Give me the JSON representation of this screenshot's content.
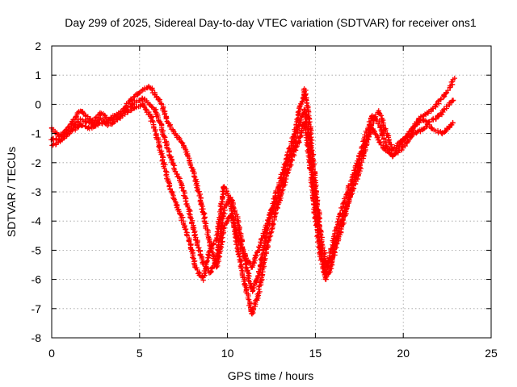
{
  "chart_data": {
    "type": "scatter",
    "title": "Day 299 of 2025, Sidereal Day-to-day VTEC variation (SDTVAR) for receiver ons1",
    "xlabel": "GPS time / hours",
    "ylabel": "SDTVAR / TECUs",
    "xlim": [
      0,
      25
    ],
    "ylim": [
      -8,
      2
    ],
    "xticks": [
      0,
      5,
      10,
      15,
      20,
      25
    ],
    "yticks": [
      -8,
      -7,
      -6,
      -5,
      -4,
      -3,
      -2,
      -1,
      0,
      1,
      2
    ],
    "grid": true,
    "marker": "+",
    "color": "#ff0000",
    "series": [
      {
        "x": [
          0.0,
          0.4,
          0.8,
          1.2,
          1.6,
          2.0,
          2.4,
          2.8,
          3.2,
          3.6,
          4.0,
          4.4,
          4.8,
          5.2,
          5.6,
          5.9,
          6.2,
          6.6,
          7.0,
          7.4,
          7.8,
          8.2,
          8.6,
          9.0,
          9.4,
          9.8,
          10.2,
          10.6,
          11.0,
          11.4,
          11.8,
          12.2,
          12.6,
          13.0,
          13.4,
          13.8,
          14.1,
          14.4,
          14.7,
          15.0,
          15.3,
          15.6,
          15.9,
          16.2,
          16.6,
          17.0,
          17.4,
          17.8,
          18.2,
          18.6,
          19.0,
          19.4,
          19.8,
          20.2,
          20.6,
          21.0,
          21.4,
          21.8,
          22.2,
          22.6,
          22.9
        ],
        "y": [
          -0.8,
          -1.1,
          -0.9,
          -0.6,
          -0.2,
          -0.4,
          -0.6,
          -0.3,
          -0.5,
          -0.4,
          -0.2,
          0.1,
          0.3,
          0.5,
          0.6,
          0.3,
          0.1,
          -0.6,
          -1.0,
          -1.3,
          -1.8,
          -2.6,
          -3.6,
          -4.8,
          -5.6,
          -4.2,
          -3.8,
          -4.6,
          -5.2,
          -5.6,
          -4.9,
          -4.2,
          -3.4,
          -2.6,
          -1.8,
          -1.0,
          -0.2,
          0.5,
          -0.8,
          -2.8,
          -4.4,
          -5.5,
          -5.3,
          -4.6,
          -3.8,
          -3.1,
          -2.5,
          -1.6,
          -0.7,
          -0.2,
          -0.9,
          -1.6,
          -1.3,
          -1.1,
          -0.8,
          -0.4,
          -0.3,
          -0.1,
          0.2,
          0.5,
          0.9
        ]
      },
      {
        "x": [
          0.0,
          0.4,
          0.8,
          1.2,
          1.6,
          2.0,
          2.4,
          2.8,
          3.2,
          3.6,
          4.0,
          4.4,
          4.8,
          5.2,
          5.6,
          5.9,
          6.2,
          6.6,
          7.0,
          7.4,
          7.8,
          8.2,
          8.6,
          9.0,
          9.4,
          9.8,
          10.2,
          10.6,
          11.0,
          11.4,
          11.8,
          12.2,
          12.6,
          13.0,
          13.4,
          13.8,
          14.1,
          14.4,
          14.7,
          15.0,
          15.3,
          15.6,
          15.9,
          16.2,
          16.6,
          17.0,
          17.4,
          17.8,
          18.2,
          18.6,
          19.0,
          19.4,
          19.8,
          20.2,
          20.6,
          21.0,
          21.4,
          21.8,
          22.2,
          22.6,
          22.9
        ],
        "y": [
          -1.2,
          -1.2,
          -1.0,
          -0.8,
          -0.5,
          -0.6,
          -0.7,
          -0.5,
          -0.6,
          -0.5,
          -0.3,
          -0.1,
          0.1,
          0.2,
          0.0,
          -0.2,
          -0.7,
          -1.5,
          -2.2,
          -2.8,
          -3.6,
          -4.6,
          -5.4,
          -5.8,
          -5.3,
          -3.6,
          -3.2,
          -4.0,
          -5.4,
          -6.4,
          -5.8,
          -4.4,
          -3.6,
          -2.9,
          -2.0,
          -1.4,
          -0.6,
          -0.2,
          -1.4,
          -3.4,
          -4.9,
          -5.8,
          -5.0,
          -4.2,
          -3.4,
          -2.7,
          -2.0,
          -1.2,
          -0.4,
          -0.6,
          -1.4,
          -1.8,
          -1.4,
          -1.1,
          -0.8,
          -0.5,
          -0.6,
          -0.5,
          -0.3,
          0.0,
          0.2
        ]
      },
      {
        "x": [
          0.0,
          0.4,
          0.8,
          1.2,
          1.6,
          2.0,
          2.4,
          2.8,
          3.2,
          3.6,
          4.0,
          4.4,
          4.8,
          5.2,
          5.6,
          5.9,
          6.2,
          6.6,
          7.0,
          7.4,
          7.8,
          8.2,
          8.6,
          9.0,
          9.4,
          9.8,
          10.2,
          10.6,
          11.0,
          11.4,
          11.8,
          12.2,
          12.6,
          13.0,
          13.4,
          13.8,
          14.1,
          14.4,
          14.7,
          15.0,
          15.3,
          15.6,
          15.9,
          16.2,
          16.6,
          17.0,
          17.4,
          17.8,
          18.2,
          18.6,
          19.0,
          19.4,
          19.8,
          20.2,
          20.6,
          21.0,
          21.4,
          21.8,
          22.2,
          22.6,
          22.9
        ],
        "y": [
          -1.4,
          -1.3,
          -1.1,
          -0.9,
          -0.7,
          -0.8,
          -0.8,
          -0.6,
          -0.7,
          -0.6,
          -0.4,
          -0.2,
          -0.1,
          0.0,
          -0.4,
          -0.9,
          -1.6,
          -2.6,
          -3.3,
          -3.9,
          -4.6,
          -5.6,
          -6.0,
          -5.0,
          -4.6,
          -2.8,
          -3.4,
          -5.0,
          -6.2,
          -7.2,
          -6.4,
          -5.0,
          -4.0,
          -3.2,
          -2.4,
          -1.6,
          -1.2,
          -0.6,
          -2.0,
          -3.9,
          -5.2,
          -6.0,
          -5.6,
          -4.8,
          -4.0,
          -3.0,
          -2.2,
          -1.4,
          -0.8,
          -1.2,
          -1.6,
          -1.7,
          -1.6,
          -1.3,
          -1.0,
          -0.9,
          -0.7,
          -0.9,
          -1.0,
          -0.8,
          -0.6
        ]
      }
    ]
  }
}
